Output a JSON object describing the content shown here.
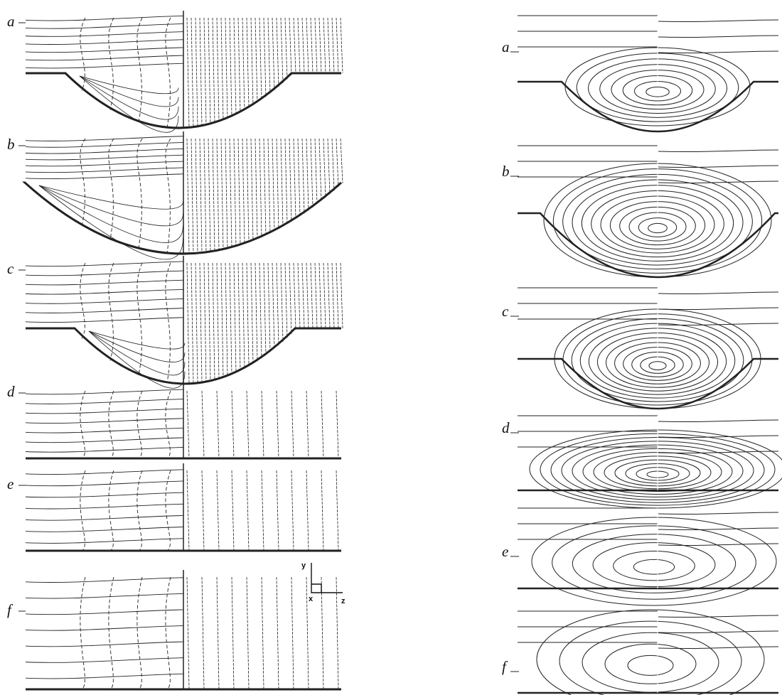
{
  "left_panels": {
    "labels": [
      "a",
      "b",
      "c",
      "d",
      "e",
      "f"
    ]
  },
  "right_panels": {
    "labels": [
      "a",
      "b",
      "c",
      "d",
      "e",
      "f"
    ]
  },
  "axes_inset": {
    "y": "y",
    "x": "x",
    "z": "z"
  }
}
